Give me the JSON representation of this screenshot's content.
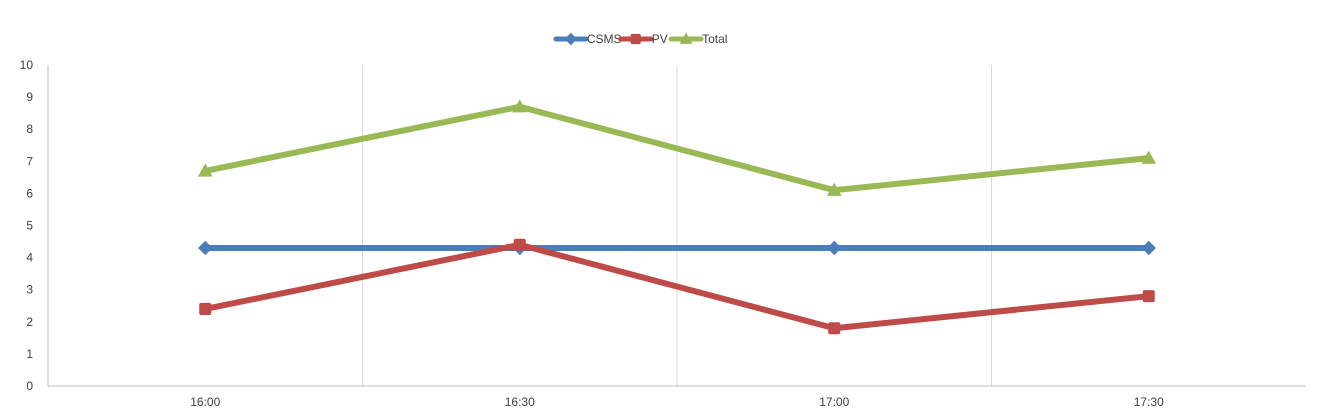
{
  "chart_data": {
    "type": "line",
    "categories": [
      "16:00",
      "16:30",
      "17:00",
      "17:30"
    ],
    "series": [
      {
        "name": "CSMS",
        "values": [
          4.3,
          4.3,
          4.3,
          4.3
        ],
        "color": "#4a7ebb",
        "marker": "diamond"
      },
      {
        "name": "PV",
        "values": [
          2.4,
          4.4,
          1.8,
          2.8
        ],
        "color": "#be4b48",
        "marker": "square"
      },
      {
        "name": "Total",
        "values": [
          6.7,
          8.7,
          6.1,
          7.1
        ],
        "color": "#98b954",
        "marker": "triangle"
      }
    ],
    "ylim": [
      0,
      10
    ],
    "yticks": [
      "0",
      "1",
      "2",
      "3",
      "4",
      "5",
      "6",
      "7",
      "8",
      "9",
      "10"
    ],
    "title": "",
    "xlabel": "",
    "ylabel": "",
    "grid": "vertical",
    "legend_position": "top-center",
    "gridline_color": "#d9d9d9",
    "axis_color": "#bfbfbf"
  }
}
